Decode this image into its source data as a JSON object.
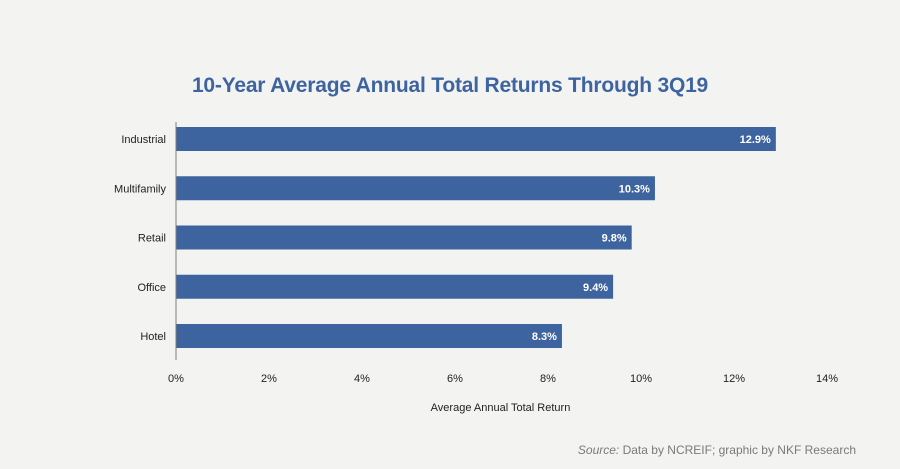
{
  "chart_data": {
    "type": "bar",
    "orientation": "horizontal",
    "title": "10-Year Average Annual Total Returns Through 3Q19",
    "categories": [
      "Industrial",
      "Multifamily",
      "Retail",
      "Office",
      "Hotel"
    ],
    "values": [
      12.9,
      10.3,
      9.8,
      9.4,
      8.3
    ],
    "data_labels": [
      "12.9%",
      "10.3%",
      "9.8%",
      "9.4%",
      "8.3%"
    ],
    "xlabel": "Average Annual Total Return",
    "ylabel": "",
    "xlim": [
      0,
      14
    ],
    "xticks": [
      0,
      2,
      4,
      6,
      8,
      10,
      12,
      14
    ],
    "xtick_labels": [
      "0%",
      "2%",
      "4%",
      "6%",
      "8%",
      "10%",
      "12%",
      "14%"
    ],
    "grid": false,
    "legend": "none",
    "bar_color": "#3e64a0",
    "title_color": "#3e64a0"
  },
  "source": {
    "label": "Source:",
    "text": " Data by NCREIF; graphic by NKF Research"
  }
}
